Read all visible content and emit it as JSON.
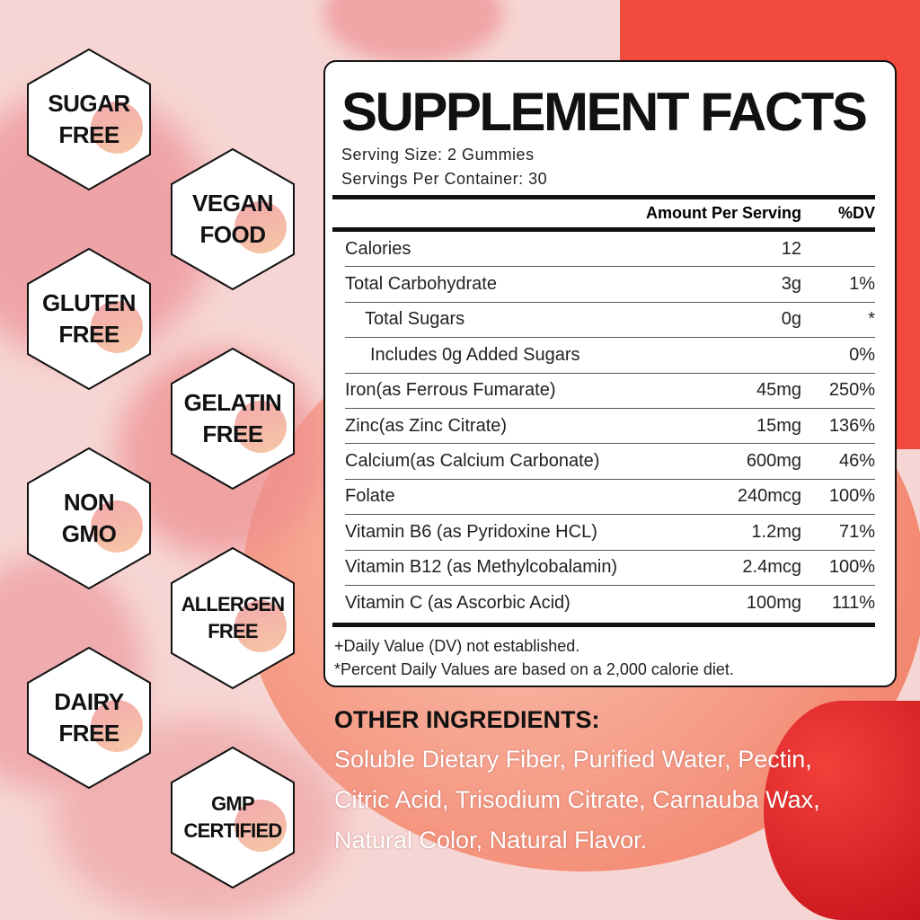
{
  "badges": [
    {
      "lines": [
        "SUGAR",
        "FREE"
      ]
    },
    {
      "lines": [
        "VEGAN",
        "FOOD"
      ]
    },
    {
      "lines": [
        "GLUTEN",
        "FREE"
      ]
    },
    {
      "lines": [
        "GELATIN",
        "FREE"
      ]
    },
    {
      "lines": [
        "NON",
        "GMO"
      ]
    },
    {
      "lines": [
        "ALLERGEN",
        "FREE"
      ]
    },
    {
      "lines": [
        "DAIRY",
        "FREE"
      ]
    },
    {
      "lines": [
        "GMP",
        "CERTIFIED"
      ]
    }
  ],
  "facts": {
    "title": "SUPPLEMENT FACTS",
    "serving_size": "Serving Size: 2 Gummies",
    "servings_per_container": "Servings Per Container: 30",
    "col_amount": "Amount Per Serving",
    "col_dv": "%DV",
    "rows": [
      {
        "name": "Calories",
        "amount": "12",
        "dv": ""
      },
      {
        "name": "Total Carbohydrate",
        "amount": "3g",
        "dv": "1%"
      },
      {
        "name": "Total Sugars",
        "amount": "0g",
        "dv": "*",
        "indent": 1
      },
      {
        "name": "Includes 0g Added Sugars",
        "amount": "",
        "dv": "0%",
        "indent": 2
      },
      {
        "name": "Iron(as Ferrous Fumarate)",
        "amount": "45mg",
        "dv": "250%"
      },
      {
        "name": "Zinc(as Zinc Citrate)",
        "amount": "15mg",
        "dv": "136%"
      },
      {
        "name": "Calcium(as Calcium Carbonate)",
        "amount": "600mg",
        "dv": "46%"
      },
      {
        "name": "Folate",
        "amount": "240mcg",
        "dv": "100%"
      },
      {
        "name": "Vitamin B6 (as Pyridoxine HCL)",
        "amount": "1.2mg",
        "dv": "71%"
      },
      {
        "name": "Vitamin B12 (as Methylcobalamin)",
        "amount": "2.4mcg",
        "dv": "100%"
      },
      {
        "name": "Vitamin C (as Ascorbic Acid)",
        "amount": "100mg",
        "dv": "111%"
      }
    ],
    "footnote1": "+Daily Value (DV) not established.",
    "footnote2": "*Percent Daily Values are based on a 2,000 calorie diet."
  },
  "other_ingredients": {
    "heading": "OTHER INGREDIENTS:",
    "lines": [
      "Soluble Dietary Fiber, Purified Water, Pectin,",
      "Citric Acid, Trisodium Citrate, Carnauba Wax,",
      "Natural Color, Natural Flavor."
    ]
  },
  "colors": {
    "accent": "#f0433a",
    "background": "#f6d6d4"
  }
}
